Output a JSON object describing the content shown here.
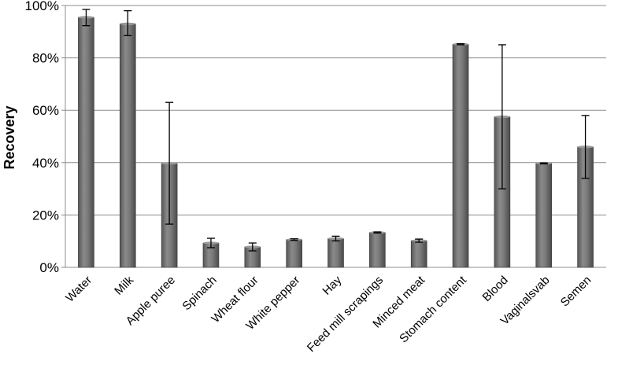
{
  "chart_data": {
    "type": "bar",
    "title": "",
    "xlabel": "",
    "ylabel": "Recovery",
    "ylim": [
      0,
      100
    ],
    "yticks": [
      "0%",
      "20%",
      "40%",
      "60%",
      "80%",
      "100%"
    ],
    "ytick_values": [
      0,
      20,
      40,
      60,
      80,
      100
    ],
    "grid": true,
    "bar_color": "#707070",
    "categories": [
      "Water",
      "Milk",
      "Apple puree",
      "Spinach",
      "Wheat flour",
      "White pepper",
      "Hay",
      "Feed mill scrapings",
      "Minced meat",
      "Stomach content",
      "Blood",
      "Vaginalsvab",
      "Semen"
    ],
    "values": [
      95.5,
      93,
      39.7,
      9.3,
      7.8,
      10.6,
      11,
      13.3,
      10.2,
      85.2,
      57.5,
      39.7,
      46
    ],
    "error_low": [
      92.3,
      88.5,
      16.5,
      7.5,
      6.3,
      10.3,
      10.1,
      13.1,
      9.6,
      85.0,
      30,
      39.5,
      34
    ],
    "error_high": [
      98.5,
      98,
      63,
      11.1,
      9.3,
      10.9,
      11.9,
      13.5,
      10.8,
      85.4,
      85,
      39.9,
      58
    ]
  }
}
